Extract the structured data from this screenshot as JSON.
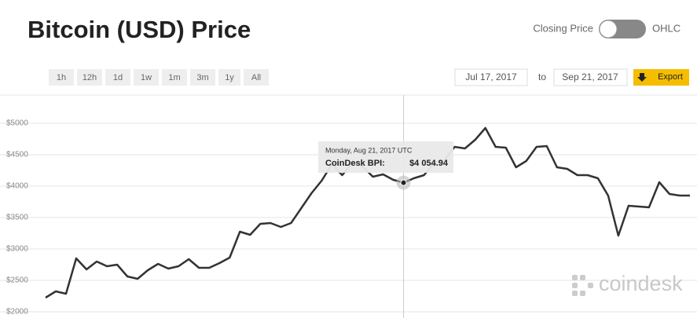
{
  "header": {
    "title": "Bitcoin (USD) Price",
    "toggle_left": "Closing Price",
    "toggle_right": "OHLC"
  },
  "ranges": [
    "1h",
    "12h",
    "1d",
    "1w",
    "1m",
    "3m",
    "1y",
    "All"
  ],
  "dates": {
    "from": "Jul 17, 2017",
    "to_label": "to",
    "to": "Sep 21, 2017",
    "export": "Export"
  },
  "watermark": "coindesk",
  "chart_data": {
    "type": "line",
    "color": "#333333",
    "grid": true,
    "ylim": [
      1900,
      5450
    ],
    "yticks": [
      {
        "value": 2000,
        "label": "$2000"
      },
      {
        "value": 2500,
        "label": "$2500"
      },
      {
        "value": 3000,
        "label": "$3000"
      },
      {
        "value": 3500,
        "label": "$3500"
      },
      {
        "value": 4000,
        "label": "$4000"
      },
      {
        "value": 4500,
        "label": "$4500"
      },
      {
        "value": 5000,
        "label": "$5000"
      }
    ],
    "values": [
      2225,
      2325,
      2287,
      2850,
      2675,
      2800,
      2725,
      2750,
      2562,
      2525,
      2662,
      2762,
      2687,
      2725,
      2837,
      2700,
      2700,
      2775,
      2862,
      3275,
      3225,
      3400,
      3412,
      3350,
      3412,
      3650,
      3887,
      4087,
      4350,
      4175,
      4375,
      4312,
      4150,
      4187,
      4100,
      4054.94,
      4125,
      4175,
      4375,
      4412,
      4625,
      4600,
      4737,
      4925,
      4625,
      4612,
      4300,
      4400,
      4625,
      4637,
      4300,
      4275,
      4175,
      4175,
      4125,
      3850,
      3212,
      3687,
      3675,
      3662,
      4062,
      3875,
      3850,
      3850
    ],
    "tooltip": {
      "title": "Monday, Aug 21, 2017 UTC",
      "label": "CoinDesk BPI:",
      "value_label": "$4 054.94"
    }
  }
}
